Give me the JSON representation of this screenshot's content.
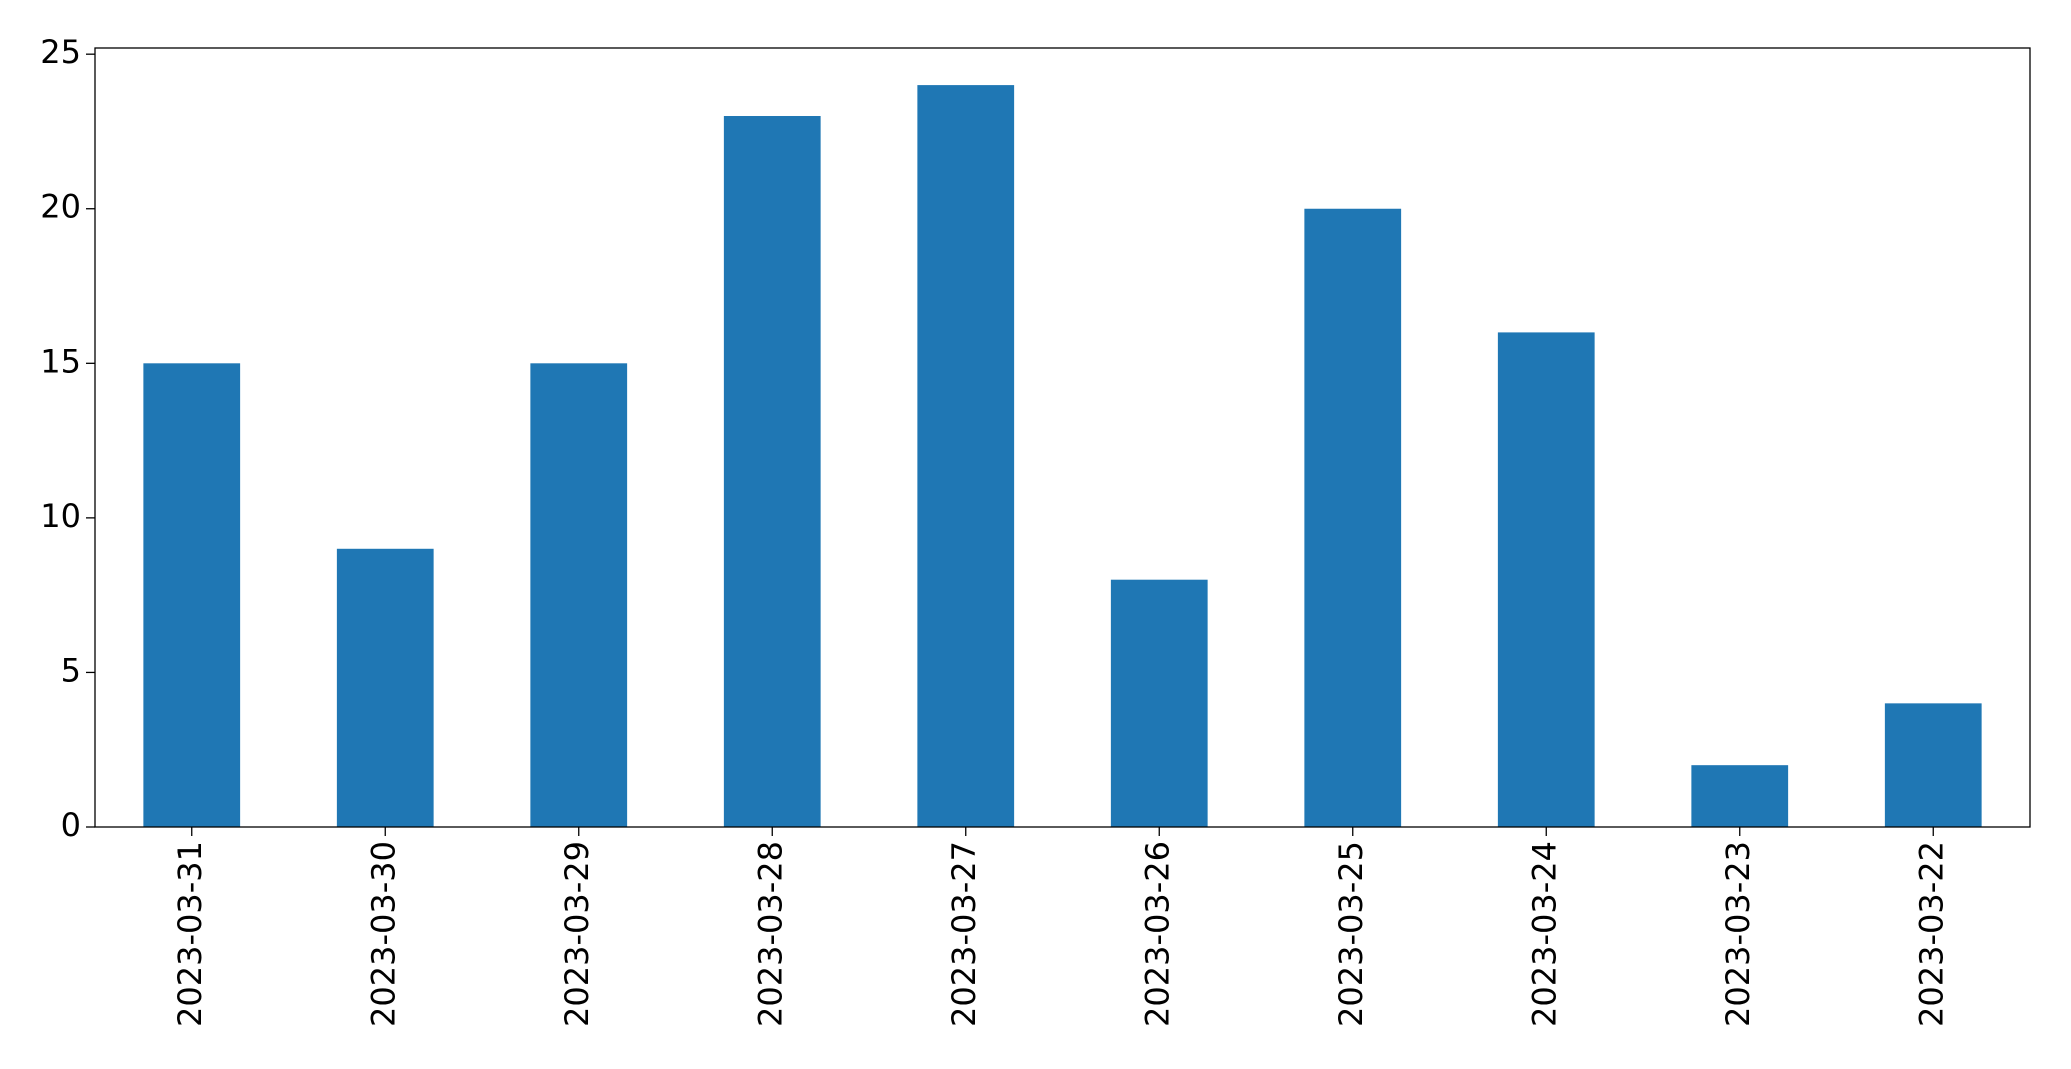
{
  "chart_data": {
    "type": "bar",
    "categories": [
      "2023-03-31",
      "2023-03-30",
      "2023-03-29",
      "2023-03-28",
      "2023-03-27",
      "2023-03-26",
      "2023-03-25",
      "2023-03-24",
      "2023-03-23",
      "2023-03-22"
    ],
    "values": [
      15,
      9,
      15,
      23,
      24,
      8,
      20,
      16,
      2,
      4
    ],
    "color": "#1f77b4",
    "ylim": [
      0,
      25.2
    ],
    "yticks": [
      0,
      5,
      10,
      15,
      20,
      25
    ],
    "grid": false
  }
}
